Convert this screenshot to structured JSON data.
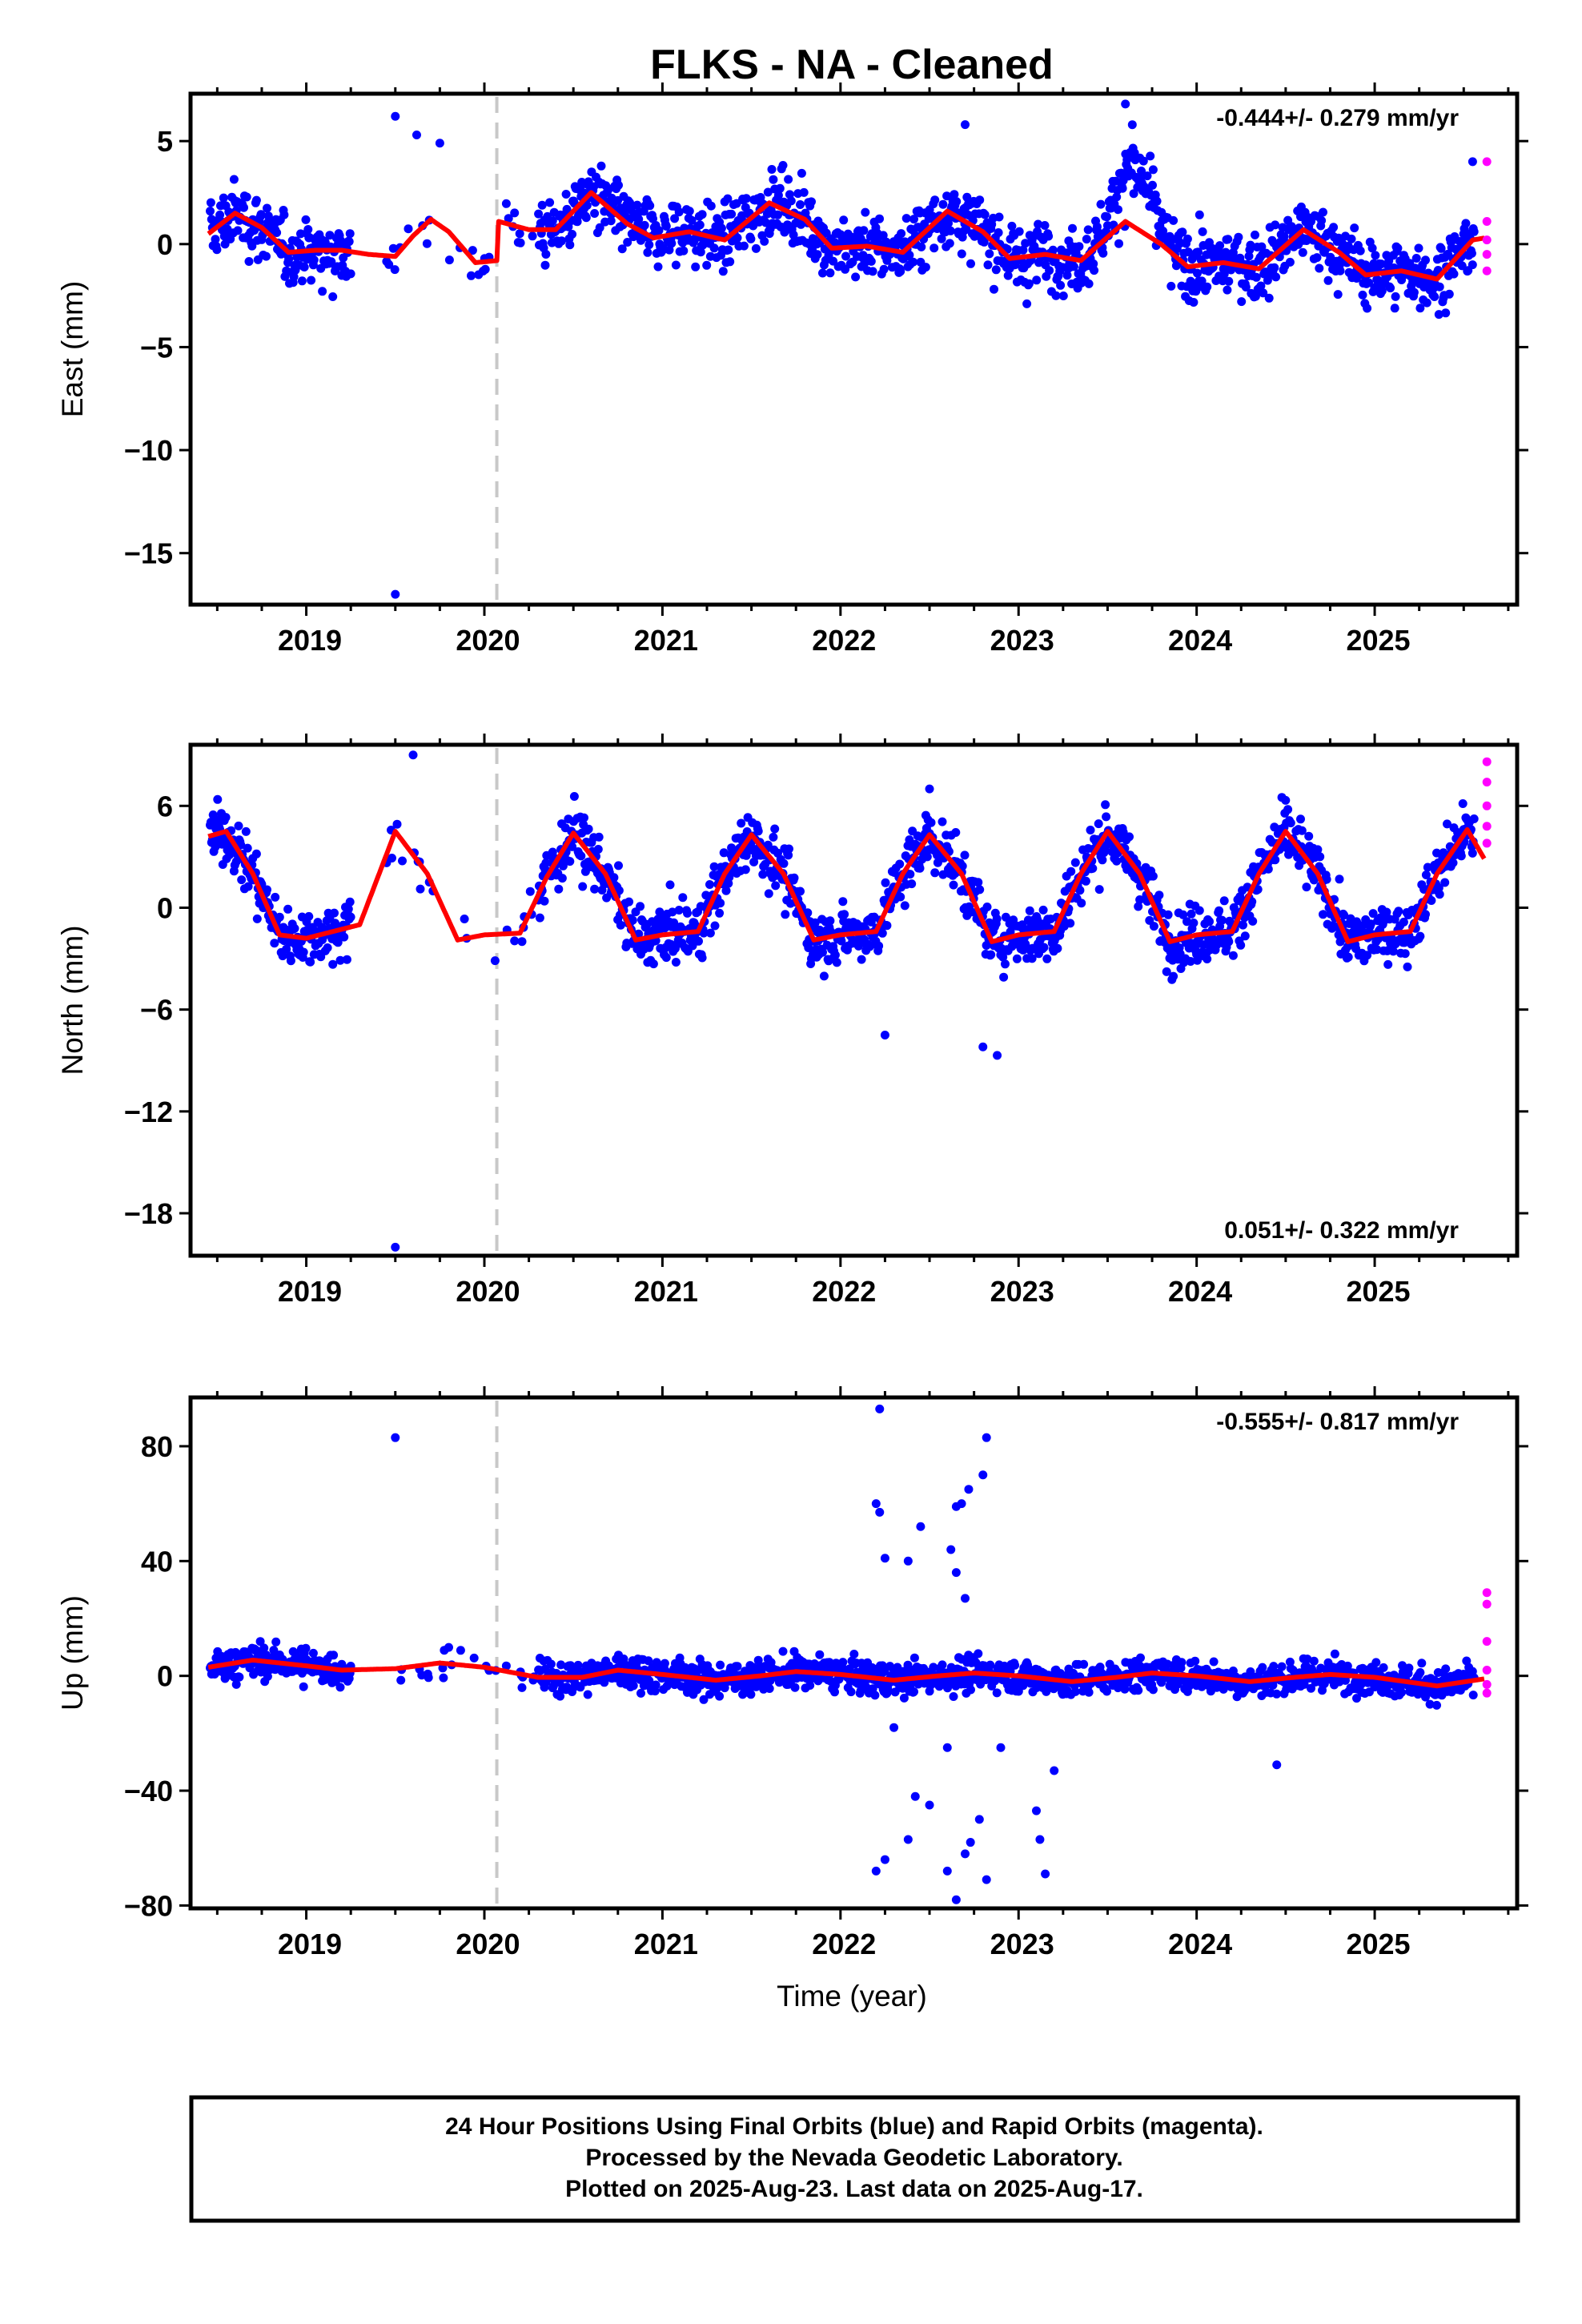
{
  "title": "FLKS  - NA - Cleaned",
  "colors": {
    "final": "#0000ff",
    "rapid": "#ff00ff",
    "model": "#ff0000",
    "break": "#c8c8c8"
  },
  "chart_data": [
    {
      "type": "scatter",
      "name": "east",
      "ylabel": "East (mm)",
      "xlabel": "",
      "xlim": [
        2018.35,
        2025.8
      ],
      "ylim": [
        -17.5,
        7.3
      ],
      "yticks": [
        5,
        0,
        -5,
        -10,
        -15
      ],
      "ytick_labels": [
        "5",
        "0",
        "−5",
        "−10",
        "−15"
      ],
      "xticks": [
        2019,
        2020,
        2021,
        2022,
        2023,
        2024,
        2025
      ],
      "xtick_labels": [
        "2019",
        "2020",
        "2021",
        "2022",
        "2023",
        "2024",
        "2025"
      ],
      "rate": "-0.444+/- 0.279 mm/yr",
      "rate_position": "top-right",
      "break_epoch": 2020.07,
      "trend": [
        [
          2018.45,
          0.5
        ],
        [
          2018.6,
          1.5
        ],
        [
          2018.75,
          0.8
        ],
        [
          2018.9,
          -0.4
        ],
        [
          2019.05,
          -0.3
        ],
        [
          2019.2,
          -0.3
        ],
        [
          2019.35,
          -0.5
        ],
        [
          2019.5,
          -0.6
        ],
        [
          2019.6,
          0.4
        ],
        [
          2019.7,
          1.2
        ],
        [
          2019.8,
          0.6
        ],
        [
          2019.95,
          -0.9
        ],
        [
          2020.07,
          -0.8
        ],
        [
          2020.08,
          1.1
        ],
        [
          2020.25,
          0.7
        ],
        [
          2020.4,
          0.7
        ],
        [
          2020.6,
          2.5
        ],
        [
          2020.8,
          1.0
        ],
        [
          2020.95,
          0.3
        ],
        [
          2021.15,
          0.6
        ],
        [
          2021.35,
          0.2
        ],
        [
          2021.6,
          2.0
        ],
        [
          2021.8,
          1.2
        ],
        [
          2021.95,
          -0.2
        ],
        [
          2022.15,
          -0.1
        ],
        [
          2022.35,
          -0.4
        ],
        [
          2022.6,
          1.6
        ],
        [
          2022.8,
          0.6
        ],
        [
          2022.95,
          -0.7
        ],
        [
          2023.15,
          -0.5
        ],
        [
          2023.35,
          -0.8
        ],
        [
          2023.6,
          1.1
        ],
        [
          2023.8,
          0.0
        ],
        [
          2023.95,
          -1.1
        ],
        [
          2024.15,
          -0.9
        ],
        [
          2024.35,
          -1.2
        ],
        [
          2024.6,
          0.7
        ],
        [
          2024.8,
          -0.4
        ],
        [
          2024.95,
          -1.5
        ],
        [
          2025.15,
          -1.3
        ],
        [
          2025.35,
          -1.7
        ],
        [
          2025.55,
          0.2
        ],
        [
          2025.62,
          0.3
        ]
      ],
      "scatter": {
        "sigma": 1.1,
        "gap": [
          2019.25,
          2019.45
        ],
        "sparse": [
          2019.45,
          2020.3
        ],
        "burst": {
          "center": 2023.65,
          "width": 0.13,
          "amp": 3.0
        },
        "outliers": [
          [
            2019.5,
            6.2
          ],
          [
            2019.62,
            5.3
          ],
          [
            2019.75,
            4.9
          ],
          [
            2019.5,
            -17.0
          ],
          [
            2022.7,
            5.8
          ],
          [
            2023.6,
            6.8
          ],
          [
            2025.55,
            4.0
          ]
        ]
      },
      "rapid": [
        4.0,
        1.1,
        0.2,
        -0.5,
        -1.3
      ]
    },
    {
      "type": "scatter",
      "name": "north",
      "ylabel": "North (mm)",
      "xlabel": "",
      "xlim": [
        2018.35,
        2025.8
      ],
      "ylim": [
        -20.5,
        9.6
      ],
      "yticks": [
        6,
        0,
        -6,
        -12,
        -18
      ],
      "ytick_labels": [
        "6",
        "0",
        "−6",
        "−12",
        "−18"
      ],
      "xticks": [
        2019,
        2020,
        2021,
        2022,
        2023,
        2024,
        2025
      ],
      "xtick_labels": [
        "2019",
        "2020",
        "2021",
        "2022",
        "2023",
        "2024",
        "2025"
      ],
      "rate": "0.051+/- 0.322 mm/yr",
      "rate_position": "bottom-right",
      "break_epoch": 2020.07,
      "trend": [
        [
          2018.45,
          4.2
        ],
        [
          2018.55,
          4.5
        ],
        [
          2018.7,
          2.0
        ],
        [
          2018.85,
          -1.6
        ],
        [
          2019.0,
          -1.8
        ],
        [
          2019.15,
          -1.4
        ],
        [
          2019.3,
          -1.0
        ],
        [
          2019.5,
          4.5
        ],
        [
          2019.68,
          2.0
        ],
        [
          2019.85,
          -1.9
        ],
        [
          2020.0,
          -1.6
        ],
        [
          2020.2,
          -1.5
        ],
        [
          2020.35,
          1.8
        ],
        [
          2020.5,
          4.4
        ],
        [
          2020.68,
          2.0
        ],
        [
          2020.85,
          -1.9
        ],
        [
          2021.0,
          -1.6
        ],
        [
          2021.2,
          -1.4
        ],
        [
          2021.35,
          2.0
        ],
        [
          2021.5,
          4.3
        ],
        [
          2021.68,
          2.0
        ],
        [
          2021.85,
          -1.9
        ],
        [
          2022.0,
          -1.6
        ],
        [
          2022.2,
          -1.4
        ],
        [
          2022.35,
          2.0
        ],
        [
          2022.5,
          4.3
        ],
        [
          2022.68,
          2.0
        ],
        [
          2022.85,
          -2.0
        ],
        [
          2023.0,
          -1.6
        ],
        [
          2023.2,
          -1.4
        ],
        [
          2023.35,
          2.0
        ],
        [
          2023.5,
          4.5
        ],
        [
          2023.68,
          2.0
        ],
        [
          2023.85,
          -2.0
        ],
        [
          2024.0,
          -1.6
        ],
        [
          2024.2,
          -1.4
        ],
        [
          2024.35,
          2.0
        ],
        [
          2024.5,
          4.5
        ],
        [
          2024.68,
          2.0
        ],
        [
          2024.85,
          -2.0
        ],
        [
          2025.0,
          -1.6
        ],
        [
          2025.2,
          -1.4
        ],
        [
          2025.35,
          2.0
        ],
        [
          2025.52,
          4.6
        ],
        [
          2025.62,
          2.8
        ]
      ],
      "scatter": {
        "sigma": 1.2,
        "gap": [
          2019.25,
          2019.45
        ],
        "sparse": [
          2019.45,
          2020.3
        ],
        "outliers": [
          [
            2019.5,
            -20.0
          ],
          [
            2019.6,
            9.0
          ],
          [
            2022.8,
            -8.2
          ],
          [
            2022.88,
            -8.7
          ],
          [
            2022.25,
            -7.5
          ],
          [
            2022.5,
            7.0
          ]
        ]
      },
      "rapid": [
        8.6,
        7.4,
        6.0,
        4.8,
        3.8
      ]
    },
    {
      "type": "scatter",
      "name": "up",
      "ylabel": "Up (mm)",
      "xlabel": "Time (year)",
      "xlim": [
        2018.35,
        2025.8
      ],
      "ylim": [
        -81,
        97
      ],
      "yticks": [
        80,
        40,
        0,
        -40,
        -80
      ],
      "ytick_labels": [
        "80",
        "40",
        "0",
        "−40",
        "−80"
      ],
      "xticks": [
        2019,
        2020,
        2021,
        2022,
        2023,
        2024,
        2025
      ],
      "xtick_labels": [
        "2019",
        "2020",
        "2021",
        "2022",
        "2023",
        "2024",
        "2025"
      ],
      "rate": "-0.555+/- 0.817 mm/yr",
      "rate_position": "top-right",
      "break_epoch": 2020.07,
      "trend": [
        [
          2018.45,
          3
        ],
        [
          2018.7,
          5.5
        ],
        [
          2019.0,
          3.5
        ],
        [
          2019.2,
          2.0
        ],
        [
          2019.5,
          2.5
        ],
        [
          2019.75,
          4.5
        ],
        [
          2020.0,
          3.0
        ],
        [
          2020.3,
          -0.5
        ],
        [
          2020.55,
          -0.5
        ],
        [
          2020.75,
          2.0
        ],
        [
          2021.0,
          0.5
        ],
        [
          2021.3,
          -1.5
        ],
        [
          2021.55,
          0.0
        ],
        [
          2021.75,
          1.5
        ],
        [
          2022.0,
          0.5
        ],
        [
          2022.3,
          -1.5
        ],
        [
          2022.55,
          0.0
        ],
        [
          2022.75,
          1.0
        ],
        [
          2023.0,
          0.0
        ],
        [
          2023.3,
          -2.0
        ],
        [
          2023.55,
          -0.5
        ],
        [
          2023.75,
          1.0
        ],
        [
          2024.0,
          0.0
        ],
        [
          2024.3,
          -2.0
        ],
        [
          2024.55,
          -0.5
        ],
        [
          2024.75,
          0.5
        ],
        [
          2025.0,
          -0.5
        ],
        [
          2025.35,
          -3.5
        ],
        [
          2025.62,
          -1.0
        ]
      ],
      "scatter": {
        "sigma": 4.0,
        "gap": [
          2019.25,
          2019.45
        ],
        "sparse": [
          2019.45,
          2020.3
        ],
        "outliers": [
          [
            2019.5,
            83
          ],
          [
            2022.22,
            93
          ],
          [
            2022.2,
            60
          ],
          [
            2022.22,
            57
          ],
          [
            2022.25,
            41
          ],
          [
            2022.38,
            40
          ],
          [
            2022.45,
            52
          ],
          [
            2022.62,
            44
          ],
          [
            2022.65,
            59
          ],
          [
            2022.68,
            60
          ],
          [
            2022.72,
            65
          ],
          [
            2022.65,
            36
          ],
          [
            2022.8,
            70
          ],
          [
            2022.82,
            83
          ],
          [
            2022.7,
            27
          ],
          [
            2022.2,
            -68
          ],
          [
            2022.25,
            -64
          ],
          [
            2022.38,
            -57
          ],
          [
            2022.42,
            -42
          ],
          [
            2022.5,
            -45
          ],
          [
            2022.6,
            -68
          ],
          [
            2022.65,
            -78
          ],
          [
            2022.7,
            -62
          ],
          [
            2022.73,
            -58
          ],
          [
            2022.78,
            -50
          ],
          [
            2022.82,
            -71
          ],
          [
            2022.9,
            -25
          ],
          [
            2023.1,
            -47
          ],
          [
            2023.12,
            -57
          ],
          [
            2023.15,
            -69
          ],
          [
            2023.2,
            -33
          ],
          [
            2022.3,
            -18
          ],
          [
            2022.6,
            -25
          ],
          [
            2024.45,
            -31
          ]
        ]
      },
      "rapid": [
        29,
        25,
        12,
        2,
        -3,
        -6
      ]
    }
  ],
  "footer": {
    "line1": "24 Hour Positions Using Final Orbits (blue) and Rapid Orbits (magenta).",
    "line2": "Processed by the Nevada Geodetic Laboratory.",
    "line3": "Plotted on 2025-Aug-23. Last data on 2025-Aug-17."
  }
}
